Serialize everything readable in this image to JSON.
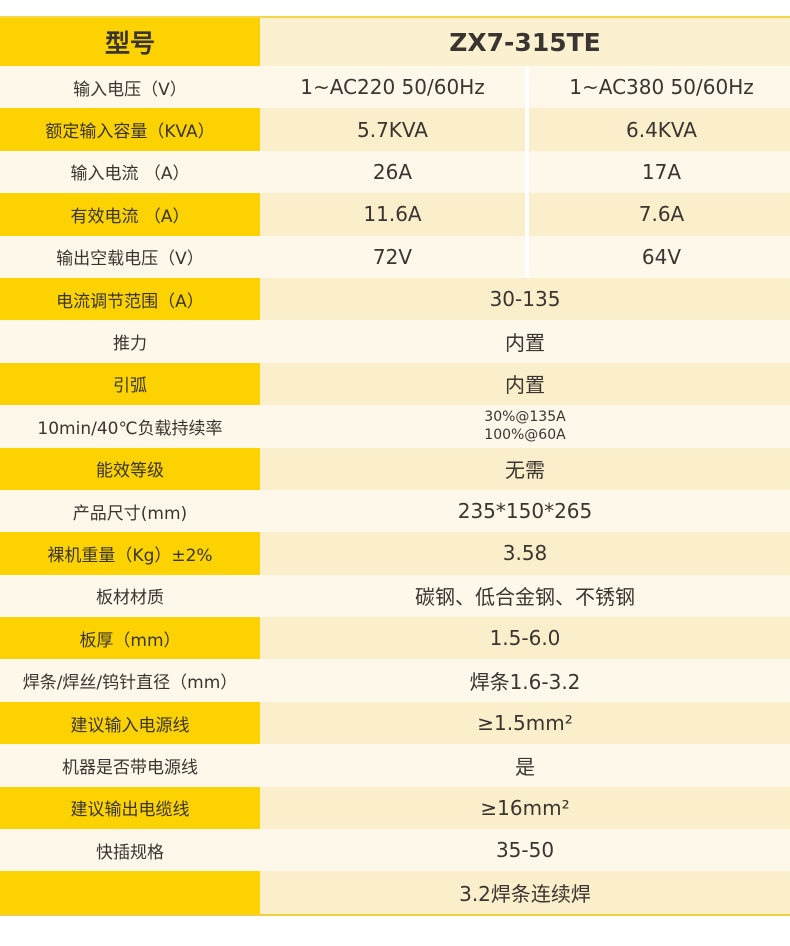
{
  "header": {
    "label": "型号",
    "model": "ZX7-315TE"
  },
  "split_rows": [
    {
      "label": "输入电压（V）",
      "a": "1~AC220 50/60Hz",
      "b": "1~AC380 50/60Hz"
    },
    {
      "label": "额定输入容量（KVA）",
      "a": "5.7KVA",
      "b": "6.4KVA"
    },
    {
      "label": "输入电流 （A）",
      "a": "26A",
      "b": "17A"
    },
    {
      "label": "有效电流 （A）",
      "a": "11.6A",
      "b": "7.6A"
    },
    {
      "label": "输出空载电压（V）",
      "a": "72V",
      "b": "64V"
    }
  ],
  "rows": [
    {
      "label": "电流调节范围（A）",
      "value": "30-135"
    },
    {
      "label": "推力",
      "value": "内置"
    },
    {
      "label": "引弧",
      "value": "内置"
    },
    {
      "label": "10min/40℃负载持续率",
      "value": "30%@135A",
      "value2": "100%@60A"
    },
    {
      "label": "能效等级",
      "value": "无需"
    },
    {
      "label": "产品尺寸(mm)",
      "value": "235*150*265"
    },
    {
      "label": "裸机重量（Kg）±2%",
      "value": "3.58"
    },
    {
      "label": "板材材质",
      "value": "碳钢、低合金钢、不锈钢"
    },
    {
      "label": "板厚（mm）",
      "value": "1.5-6.0"
    },
    {
      "label": "焊条/焊丝/钨针直径（mm）",
      "value": "焊条1.6-3.2"
    },
    {
      "label": "建议输入电源线",
      "value": "≥1.5mm²"
    },
    {
      "label": "机器是否带电源线",
      "value": "是"
    },
    {
      "label": "建议输出电缆线",
      "value": "≥16mm²"
    },
    {
      "label": "快插规格",
      "value": "35-50"
    },
    {
      "label": "",
      "value": "3.2焊条连续焊"
    }
  ],
  "colors": {
    "accent": "#fcd200",
    "cream": "#fbeecb",
    "light": "#fdf8ea"
  }
}
